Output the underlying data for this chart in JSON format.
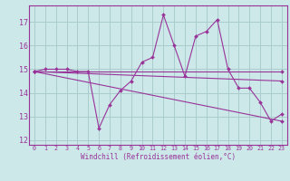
{
  "xlabel": "Windchill (Refroidissement éolien,°C)",
  "background_color": "#cce8e8",
  "line_color": "#993399",
  "grid_color": "#aacccc",
  "xlim": [
    -0.5,
    23.5
  ],
  "ylim": [
    11.8,
    17.7
  ],
  "yticks": [
    12,
    13,
    14,
    15,
    16,
    17
  ],
  "xticks": [
    0,
    1,
    2,
    3,
    4,
    5,
    6,
    7,
    8,
    9,
    10,
    11,
    12,
    13,
    14,
    15,
    16,
    17,
    18,
    19,
    20,
    21,
    22,
    23
  ],
  "series": [
    {
      "x": [
        0,
        1,
        2,
        3,
        4,
        5,
        6,
        7,
        8,
        9,
        10,
        11,
        12,
        13,
        14,
        15,
        16,
        17,
        18,
        19,
        20,
        21,
        22,
        23
      ],
      "y": [
        14.9,
        15.0,
        15.0,
        15.0,
        14.9,
        14.9,
        12.5,
        13.5,
        14.1,
        14.5,
        15.3,
        15.5,
        17.3,
        16.0,
        14.7,
        16.4,
        16.6,
        17.1,
        15.0,
        14.2,
        14.2,
        13.6,
        12.8,
        13.1
      ]
    },
    {
      "x": [
        0,
        23
      ],
      "y": [
        14.9,
        14.9
      ]
    },
    {
      "x": [
        0,
        23
      ],
      "y": [
        14.9,
        14.5
      ]
    },
    {
      "x": [
        0,
        23
      ],
      "y": [
        14.9,
        12.8
      ]
    }
  ]
}
